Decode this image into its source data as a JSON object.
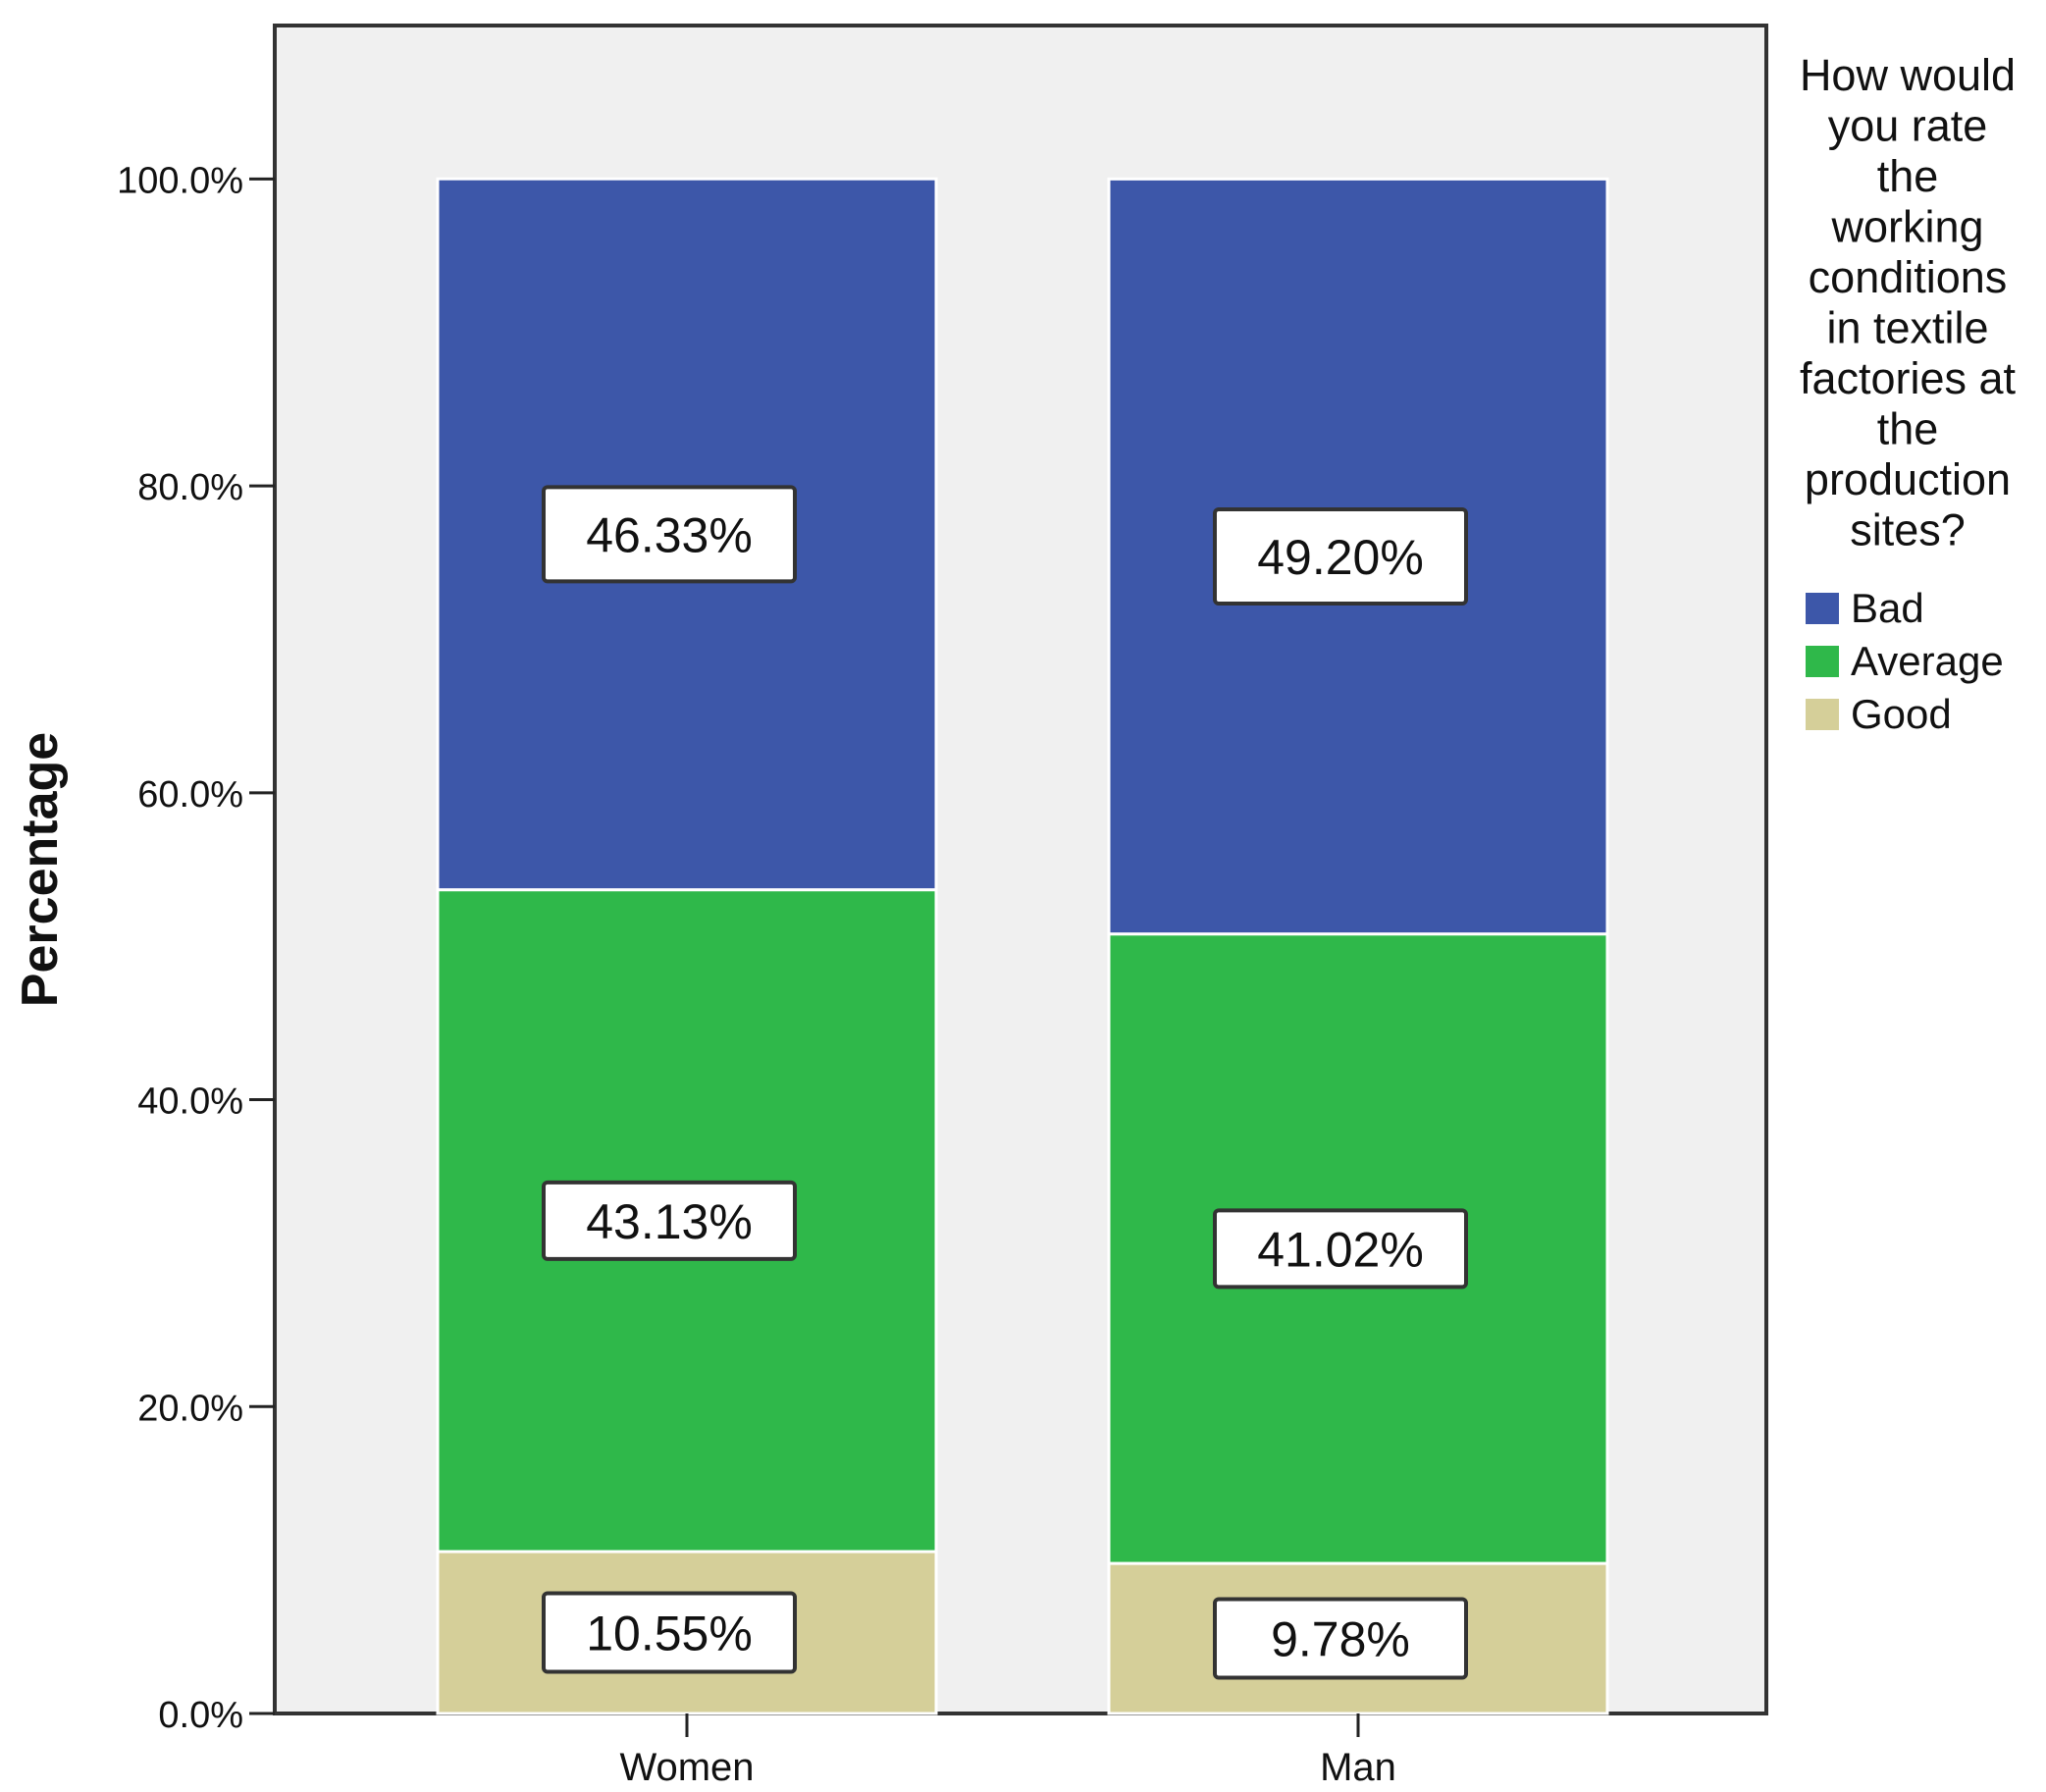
{
  "chart_data": {
    "type": "bar",
    "stacked": true,
    "categories": [
      "Women",
      "Man"
    ],
    "series": [
      {
        "name": "Good",
        "values": [
          10.55,
          9.78
        ],
        "labels": [
          "10.55%",
          "9.78%"
        ],
        "color": "#d5cf99"
      },
      {
        "name": "Average",
        "values": [
          43.13,
          41.02
        ],
        "labels": [
          "43.13%",
          "41.02%"
        ],
        "color": "#2fb84a"
      },
      {
        "name": "Bad",
        "values": [
          46.33,
          49.2
        ],
        "labels": [
          "46.33%",
          "49.20%"
        ],
        "color": "#3d57a9"
      }
    ],
    "legend_order": [
      "Bad",
      "Average",
      "Good"
    ],
    "legend_title_lines": [
      "How would",
      "you rate",
      "the",
      "working",
      "conditions",
      "in textile",
      "factories at",
      "the",
      "production",
      "sites?"
    ],
    "legend_position": "right",
    "ylabel": "Percentage",
    "xlabel": "",
    "ylim": [
      0,
      110
    ],
    "y_ticks": [
      0,
      20,
      40,
      60,
      80,
      100
    ],
    "y_tick_labels": [
      "0.0%",
      "20.0%",
      "40.0%",
      "60.0%",
      "80.0%",
      "100.0%"
    ],
    "grid": false,
    "plot_background": "#f0f0f0"
  }
}
